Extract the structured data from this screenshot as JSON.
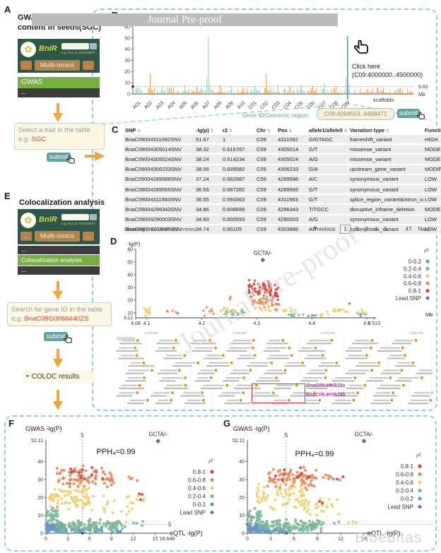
{
  "watermarks": {
    "top_bar": "Journal Pre-proof",
    "diagonal": "Journal Pre-proof",
    "bottom_right": "Bioeditas"
  },
  "colors": {
    "dashed_border": "#8ecdf0",
    "arrow_orange": "#f0a73c",
    "submit_teal": "#61a2a2",
    "red_text": "#e8392f",
    "mock_header_green": "#2f5747",
    "mock_btn_tan": "#b3854d",
    "mock_bar_green": "#76b041",
    "mock_bar_dark": "#3d3d3d",
    "manhattan_green": "#9bd4b5",
    "manhattan_orange": "#f0a055",
    "select_line_blue": "#3d9bd6",
    "myb_magenta": "#ab3fae",
    "r2": {
      "0-0.2": "#6e96c4",
      "0.2-0.4": "#7cb897",
      "0.4-0.6": "#ecd06a",
      "0.6-0.8": "#e78a57",
      "0.8-1": "#d0453e",
      "lead": "#7d5fa9"
    }
  },
  "panelA": {
    "label": "A",
    "title_line1": "GWAS",
    "title_line2": "content in seeds(SGC)",
    "mockup": {
      "logo": "BnIR",
      "flower": "✿",
      "hint": "e.g. FLC or AT1G02970",
      "menu_left": "...",
      "menu_center": "Multi-omics",
      "menu_right": "...",
      "bar_main": "GWAS",
      "bar_bottom": "..."
    },
    "select_box": {
      "line1": "Select a trait in the table",
      "prefix": "e.g. ",
      "value": "SGC"
    },
    "submit": "submit"
  },
  "panelB": {
    "label": "B",
    "click_note_line1": "Click here",
    "click_note_line2": "(C09:4000000..4500000)"
  },
  "region_bar": {
    "label": "Gene ID/Genomic region:",
    "value": "C09:4094503..4498471",
    "submit": "submit"
  },
  "panelC": {
    "label": "C",
    "columns": [
      "SNP",
      "-lg(p)",
      "r2",
      "Chr",
      "Pos",
      "allele1/allele0",
      "Variation type",
      "Function type"
    ],
    "rows": [
      [
        "BnaC09004311092SNV",
        "51.67",
        "1",
        "C09",
        "4311092",
        "G/GTAGC",
        "frameshift_variant",
        "HIGH"
      ],
      [
        "BnaC09004305014SNV",
        "38.32",
        "0.616767",
        "C09",
        "4305014",
        "G/T",
        "missense_variant",
        "MODERATE"
      ],
      [
        "BnaC09004305024SNV",
        "38.24",
        "0.614234",
        "C09",
        "4305024",
        "A/G",
        "missense_variant",
        "MODERATE"
      ],
      [
        "BnaC09004306233SNV",
        "38.06",
        "0.639582",
        "C09",
        "4306233",
        "G/A",
        "upstream_gene_variant",
        "MODIFIER"
      ],
      [
        "BnaC09004289586SNV",
        "37.24",
        "0.662987",
        "C09",
        "4289586",
        "A/C",
        "synonymous_variant",
        "LOW"
      ],
      [
        "BnaC09004289565SNV",
        "36.56",
        "0.667282",
        "C09",
        "4289565",
        "G/T",
        "synonymous_variant",
        "LOW"
      ],
      [
        "BnaC09004311583SNV",
        "36.55",
        "0.593363",
        "C09",
        "4311583",
        "G/T",
        "splice_region_variant&intron_variant",
        "LOW"
      ],
      [
        "BnaC09004296343SNV",
        "34.86",
        "0.608899",
        "C09",
        "4296343",
        "T/TGCC",
        "disruptive_inframe_deletion",
        "MODERATE"
      ],
      [
        "BnaC09004290003SNV",
        "34.83",
        "0.600593",
        "C09",
        "4290003",
        "A/G",
        "synonymous_variant",
        "LOW"
      ],
      [
        "BnaC09004303886SNV",
        "34.74",
        "0.60105",
        "C09",
        "4303886",
        "A/T",
        "synonymous_variant",
        "LOW"
      ]
    ],
    "footer": "Showing 1 to 10 of 462 entries",
    "pagination": {
      "previous": "Previous",
      "pages": [
        "1",
        "2",
        "3",
        "4",
        "5",
        "…",
        "47"
      ],
      "active": "1",
      "next": "Next"
    }
  },
  "panelD": {
    "label": "D",
    "gene_track": {
      "positions": [
        "4,125,000",
        "4,250,000",
        "4,375,000",
        "4,500,000"
      ],
      "myb_label_a": "BnaC09.MYB28a",
      "myb_label_b": "BnaC09.MYB28b"
    }
  },
  "panelE": {
    "label": "E",
    "title": "Colocalization analysis",
    "mockup": {
      "logo": "BnIR",
      "flower": "✿",
      "hint": "e.g. FLC or AT1G02970",
      "menu_left": "...",
      "menu_center": "Multi-omics",
      "menu_right": "...",
      "bar_top": "...",
      "bar_main": "Colocalization analysis",
      "bar_bottom": "..."
    },
    "search_box": {
      "line1": "Search for gene ID in the table",
      "prefix": "e.g. ",
      "value": "BnaC09G0066440ZS"
    },
    "submit": "submit",
    "coloc_results": "‣ COLOC results"
  },
  "panelF": {
    "label": "F"
  },
  "panelG": {
    "label": "G"
  },
  "chart_data": [
    {
      "id": "manhattan",
      "type": "bar",
      "title": "",
      "ylabel": "",
      "xlabel": "Mb",
      "yticks": [
        0,
        10,
        20,
        30,
        40,
        50,
        60
      ],
      "ylim": [
        0,
        60
      ],
      "threshold": 6.62,
      "threshold_label": "6.62",
      "unit_label": "Mb",
      "categories": [
        "A01",
        "A02",
        "A03",
        "A04",
        "A05",
        "A06",
        "A07",
        "A08",
        "A09",
        "A10",
        "C01",
        "C02",
        "C03",
        "C04",
        "C05",
        "C06",
        "C07",
        "C08",
        "C09",
        "scaffolds"
      ],
      "colors": [
        "g",
        "o",
        "g",
        "o",
        "g",
        "o",
        "g",
        "o",
        "g",
        "o",
        "g",
        "o",
        "g",
        "o",
        "g",
        "o",
        "g",
        "o",
        "g",
        "o"
      ],
      "peaks": [
        5.5,
        18.5,
        7,
        6.5,
        8,
        6.5,
        50.5,
        8,
        6.8,
        6.5,
        7,
        18.5,
        8,
        7.5,
        8,
        7.2,
        9.5,
        7,
        51.5,
        5
      ],
      "selected_chrom": "C09",
      "selected_region": "C09:4000000..4500000"
    },
    {
      "id": "locuszoom",
      "type": "scatter",
      "ylabel": "-lg(P)",
      "xlabel": "Mb",
      "xlim": [
        4.08,
        4.513
      ],
      "ylim": [
        6.12,
        60
      ],
      "xticks": [
        4.08,
        4.1,
        4.2,
        4.3,
        4.4,
        4.5,
        4.513
      ],
      "yticks": [
        10,
        20,
        30,
        40,
        50,
        60
      ],
      "ymin_label": "6.12",
      "lead": {
        "x": 4.311,
        "y": 51.67,
        "label": "GCTA/-"
      },
      "legend_title": "r²",
      "legend": [
        {
          "label": "0-0.2",
          "cls": "b"
        },
        {
          "label": "0.2-0.4",
          "cls": "g"
        },
        {
          "label": "0.4-0.6",
          "cls": "y"
        },
        {
          "label": "0.6-0.8",
          "cls": "o"
        },
        {
          "label": "0.8-1",
          "cls": "r"
        },
        {
          "label": "Lead SNP",
          "cls": "lead"
        }
      ],
      "clusters": [
        [
          "y",
          4.092,
          4.106,
          7,
          16,
          13
        ],
        [
          "o",
          4.13,
          4.175,
          8,
          13,
          6
        ],
        [
          "o",
          4.19,
          4.225,
          7,
          16,
          7
        ],
        [
          "y",
          4.233,
          4.262,
          7,
          15,
          18
        ],
        [
          "g",
          4.238,
          4.28,
          6.5,
          13,
          12
        ],
        [
          "o",
          4.242,
          4.255,
          20,
          24.5,
          3
        ],
        [
          "g",
          4.272,
          4.278,
          9,
          13,
          5
        ],
        [
          "r",
          4.285,
          4.327,
          21,
          38,
          62
        ],
        [
          "o",
          4.287,
          4.33,
          13,
          27,
          42
        ],
        [
          "y",
          4.295,
          4.33,
          9,
          18,
          10
        ],
        [
          "r",
          4.332,
          4.339,
          19,
          33,
          15
        ],
        [
          "o",
          4.333,
          4.341,
          11,
          19,
          7
        ],
        [
          "y",
          4.343,
          4.372,
          8,
          16,
          9
        ],
        [
          "g",
          4.357,
          4.4,
          6.5,
          10,
          11
        ],
        [
          "y",
          4.398,
          4.43,
          7,
          12,
          7
        ],
        [
          "b",
          4.4,
          4.42,
          6.8,
          8.5,
          3
        ],
        [
          "y",
          4.438,
          4.465,
          9,
          14.5,
          12
        ],
        [
          "r",
          4.468,
          4.473,
          17,
          18,
          1
        ],
        [
          "y",
          4.475,
          4.502,
          7.5,
          13,
          8
        ],
        [
          "g",
          4.483,
          4.5,
          7,
          11,
          5
        ]
      ]
    },
    {
      "id": "coloc_f",
      "type": "scatter",
      "ylabel": "GWAS -lg(P)",
      "xlabel": "eQTL -lg(P)",
      "xlim": [
        0,
        16.648
      ],
      "ylim": [
        0,
        52.11
      ],
      "xticks": [
        0,
        3,
        6,
        9,
        12,
        15
      ],
      "x_end_label": "16.648",
      "yticks": [
        0,
        10,
        20,
        30,
        40
      ],
      "ymax_label": "52.11",
      "threshold_x": 5,
      "threshold_x_label": "5",
      "threshold_y": 5,
      "threshold_y_label": "5",
      "pph_label": "PPH₄=0.99",
      "lead": {
        "x": 15.4,
        "y": 51.5,
        "label": "GCTA/-"
      },
      "legend_title": "r²",
      "legend": [
        {
          "label": "0.8-1",
          "cls": "r"
        },
        {
          "label": "0.6-0.8",
          "cls": "o"
        },
        {
          "label": "0.4-0.6",
          "cls": "y"
        },
        {
          "label": "0.2-0.4",
          "cls": "g"
        },
        {
          "label": "0-0.2",
          "cls": "b"
        },
        {
          "label": "Lead SNP",
          "cls": "lead"
        }
      ],
      "clusters": [
        [
          "b",
          0,
          2.6,
          0,
          6,
          120
        ],
        [
          "b",
          2.6,
          8,
          0,
          3,
          35
        ],
        [
          "b",
          8,
          11,
          0,
          2,
          6
        ],
        [
          "g",
          0,
          1.6,
          4,
          15,
          35
        ],
        [
          "g",
          1.4,
          10.5,
          0,
          8,
          115
        ],
        [
          "g",
          9,
          13.5,
          3,
          7,
          8
        ],
        [
          "y",
          0.3,
          6,
          12,
          30,
          70
        ],
        [
          "y",
          4,
          12,
          6,
          26,
          30
        ],
        [
          "y",
          12,
          13.8,
          15,
          24,
          4
        ],
        [
          "o",
          1.5,
          9,
          24,
          38,
          80
        ],
        [
          "o",
          9,
          13,
          26,
          33,
          8
        ],
        [
          "r",
          2.5,
          8,
          28,
          37,
          12
        ],
        [
          "r",
          12.6,
          13.4,
          16,
          23,
          3
        ]
      ]
    },
    {
      "id": "coloc_g",
      "type": "scatter",
      "ylabel": "GWAS -lg(P)",
      "xlabel": "eQTL -lg(P)",
      "xlim": [
        0,
        15.8
      ],
      "ylim": [
        0,
        52.11
      ],
      "xticks": [
        0,
        3,
        6,
        9,
        12,
        15
      ],
      "yticks": [
        0,
        10,
        20,
        30,
        40
      ],
      "ymax_label": "52.11",
      "threshold_x": 5,
      "threshold_x_label": "5",
      "threshold_y": 5,
      "pph_label": "PPH₄=0.99",
      "lead": {
        "x": 15,
        "y": 51.5,
        "label": "GCTA/-"
      },
      "legend_title": "r²",
      "legend": [
        {
          "label": "0.8-1",
          "cls": "r"
        },
        {
          "label": "0.6-0.8",
          "cls": "o"
        },
        {
          "label": "0.4-0.6",
          "cls": "y"
        },
        {
          "label": "0.2-0.4",
          "cls": "g"
        },
        {
          "label": "0-0.2",
          "cls": "b"
        },
        {
          "label": "Lead SNP",
          "cls": "lead"
        }
      ],
      "clusters": [
        [
          "b",
          0,
          2.6,
          0,
          6,
          110
        ],
        [
          "b",
          2.6,
          6,
          0,
          2.5,
          25
        ],
        [
          "g",
          0,
          1.8,
          4,
          15,
          35
        ],
        [
          "g",
          1.5,
          9.5,
          0,
          8,
          115
        ],
        [
          "g",
          9,
          12,
          4,
          7,
          6
        ],
        [
          "y",
          1,
          7.5,
          12,
          30,
          65
        ],
        [
          "y",
          6,
          12,
          8,
          22,
          28
        ],
        [
          "y",
          12.5,
          14.5,
          5,
          8,
          3
        ],
        [
          "o",
          2.5,
          9,
          24,
          38,
          80
        ],
        [
          "o",
          9,
          12.5,
          28,
          34,
          8
        ],
        [
          "r",
          3.5,
          8,
          28,
          37,
          10
        ],
        [
          "r",
          8.8,
          10,
          16,
          19,
          2
        ],
        [
          "r",
          11.5,
          12.5,
          30,
          33,
          2
        ]
      ]
    }
  ]
}
